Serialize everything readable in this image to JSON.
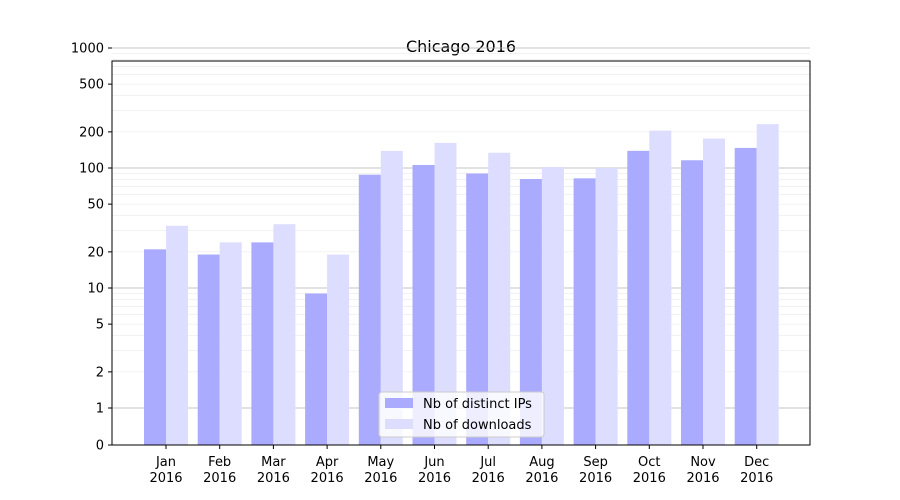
{
  "chart_data": {
    "type": "bar",
    "title": "Chicago 2016",
    "xlabel": "",
    "ylabel": "",
    "y_scale": "symlog",
    "categories": [
      [
        "Jan",
        "2016"
      ],
      [
        "Feb",
        "2016"
      ],
      [
        "Mar",
        "2016"
      ],
      [
        "Apr",
        "2016"
      ],
      [
        "May",
        "2016"
      ],
      [
        "Jun",
        "2016"
      ],
      [
        "Jul",
        "2016"
      ],
      [
        "Aug",
        "2016"
      ],
      [
        "Sep",
        "2016"
      ],
      [
        "Oct",
        "2016"
      ],
      [
        "Nov",
        "2016"
      ],
      [
        "Dec",
        "2016"
      ]
    ],
    "series": [
      {
        "name": "Nb of distinct IPs",
        "color": "#aaaaff",
        "values": [
          21,
          19,
          24,
          9,
          88,
          106,
          90,
          81,
          82,
          139,
          116,
          147
        ]
      },
      {
        "name": "Nb of downloads",
        "color": "#ddddff",
        "values": [
          33,
          24,
          34,
          19,
          139,
          162,
          134,
          102,
          100,
          205,
          176,
          232
        ]
      }
    ],
    "ylim": [
      0,
      1300
    ],
    "yticks": [
      0,
      1,
      2,
      5,
      10,
      20,
      50,
      100,
      200,
      500,
      1000
    ],
    "grid": "horizontal",
    "legend_position": "lower-center"
  }
}
